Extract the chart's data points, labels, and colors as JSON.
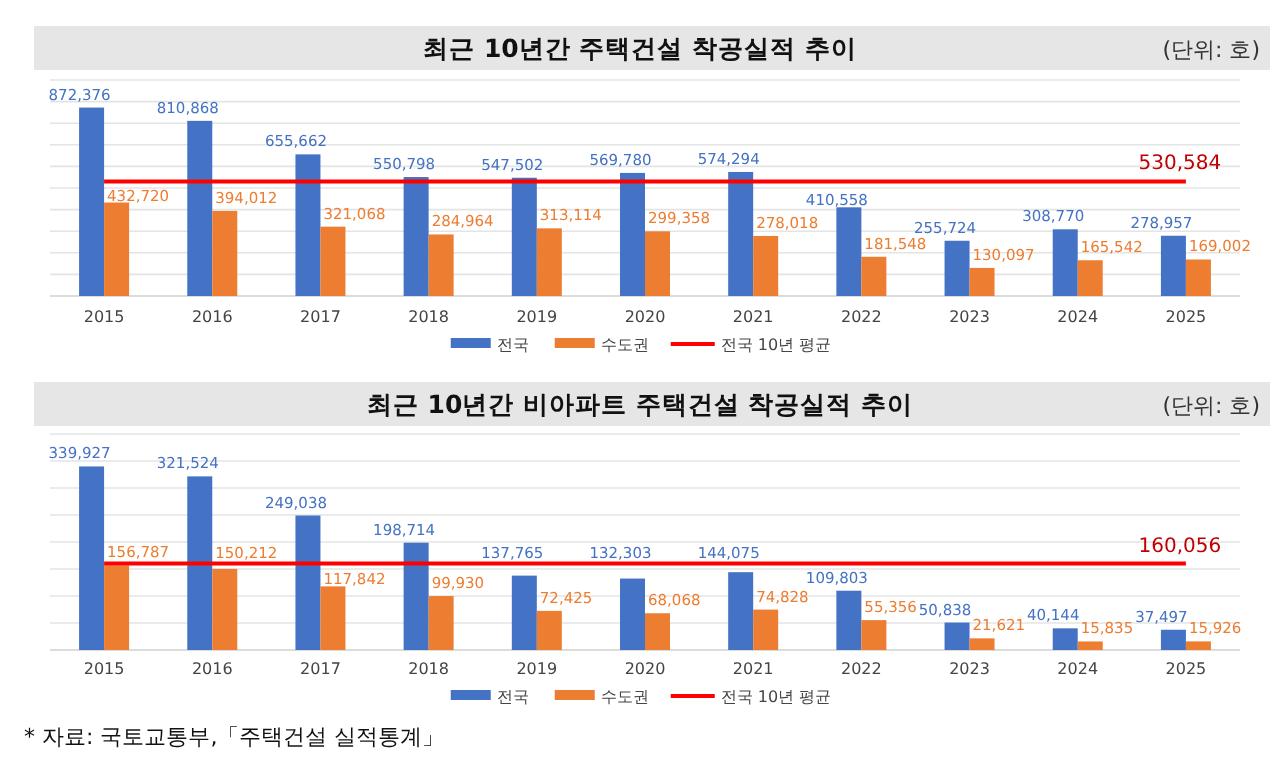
{
  "chart_data": [
    {
      "type": "bar",
      "title": "최근 10년간 주택건설 착공실적 추이",
      "subtitle": "(단위: 호)",
      "categories": [
        "2015",
        "2016",
        "2017",
        "2018",
        "2019",
        "2020",
        "2021",
        "2022",
        "2023",
        "2024",
        "2025"
      ],
      "ylim": [
        0,
        1000000
      ],
      "yticks": [
        {
          "value": 0,
          "label": null
        },
        {
          "value": 100000,
          "label": null
        },
        {
          "value": 200000,
          "label": null
        },
        {
          "value": 300000,
          "label": null
        },
        {
          "value": 400000,
          "label": null
        },
        {
          "value": 500000,
          "label": null
        },
        {
          "value": 600000,
          "label": null
        },
        {
          "value": 700000,
          "label": null
        },
        {
          "value": 800000,
          "label": null
        },
        {
          "value": 900000,
          "label": null
        },
        {
          "value": 1000000,
          "label": null
        }
      ],
      "tick_labels": "x",
      "grid": "y",
      "legend": "bottom",
      "series": [
        {
          "name": "전국",
          "color": "#4472c4",
          "values": [
            872376,
            810868,
            655662,
            550798,
            547502,
            569780,
            574294,
            410558,
            255724,
            308770,
            278957
          ],
          "value_labels": [
            "872,376",
            "810,868",
            "655,662",
            "550,798",
            "547,502",
            "569,780",
            "574,294",
            "410,558",
            "255,724",
            "308,770",
            "278,957"
          ]
        },
        {
          "name": "수도권",
          "color": "#ed7d31",
          "values": [
            432720,
            394012,
            321068,
            284964,
            313114,
            299358,
            278018,
            181548,
            130097,
            165542,
            169002
          ],
          "value_labels": [
            "432,720",
            "394,012",
            "321,068",
            "284,964",
            "313,114",
            "299,358",
            "278,018",
            "181,548",
            "130,097",
            "165,542",
            "169,002"
          ]
        },
        {
          "name": "전국 10년 평균",
          "type": "line",
          "color": "#ff0000",
          "values": [
            530584,
            530584,
            530584,
            530584,
            530584,
            530584,
            530584,
            530584,
            530584,
            530584,
            530584
          ],
          "value_labels": [
            null,
            null,
            null,
            null,
            null,
            null,
            null,
            null,
            null,
            null,
            "530,584"
          ]
        }
      ]
    },
    {
      "type": "bar",
      "title": "최근 10년간 비아파트 주택건설 착공실적 추이",
      "subtitle": "(단위: 호)",
      "categories": [
        "2015",
        "2016",
        "2017",
        "2018",
        "2019",
        "2020",
        "2021",
        "2022",
        "2023",
        "2024",
        "2025"
      ],
      "ylim": [
        0,
        400000
      ],
      "yticks": [
        {
          "value": 0,
          "label": null
        },
        {
          "value": 50000,
          "label": null
        },
        {
          "value": 100000,
          "label": null
        },
        {
          "value": 150000,
          "label": null
        },
        {
          "value": 200000,
          "label": null
        },
        {
          "value": 250000,
          "label": null
        },
        {
          "value": 300000,
          "label": null
        },
        {
          "value": 350000,
          "label": null
        },
        {
          "value": 400000,
          "label": null
        }
      ],
      "tick_labels": "x",
      "grid": "y",
      "legend": "bottom",
      "annotations": [
        "* 자료: 국토교통부,「주택건설 실적통계」"
      ],
      "series": [
        {
          "name": "전국",
          "color": "#4472c4",
          "values": [
            339927,
            321524,
            249038,
            198714,
            137765,
            132303,
            144075,
            109803,
            50838,
            40144,
            37497
          ],
          "value_labels": [
            "339,927",
            "321,524",
            "249,038",
            "198,714",
            "137,765",
            "132,303",
            "144,075",
            "109,803",
            "50,838",
            "40,144",
            "37,497"
          ]
        },
        {
          "name": "수도권",
          "color": "#ed7d31",
          "values": [
            156787,
            150212,
            117842,
            99930,
            72425,
            68068,
            74828,
            55356,
            21621,
            15835,
            15926
          ],
          "value_labels": [
            "156,787",
            "150,212",
            "117,842",
            "99,930",
            "72,425",
            "68,068",
            "74,828",
            "55,356",
            "21,621",
            "15,835",
            "15,926"
          ]
        },
        {
          "name": "전국 10년 평균",
          "type": "line",
          "color": "#ff0000",
          "values": [
            160056,
            160056,
            160056,
            160056,
            160056,
            160056,
            160056,
            160056,
            160056,
            160056,
            160056
          ],
          "value_labels": [
            null,
            null,
            null,
            null,
            null,
            null,
            null,
            null,
            null,
            null,
            "160,056"
          ]
        }
      ]
    }
  ]
}
